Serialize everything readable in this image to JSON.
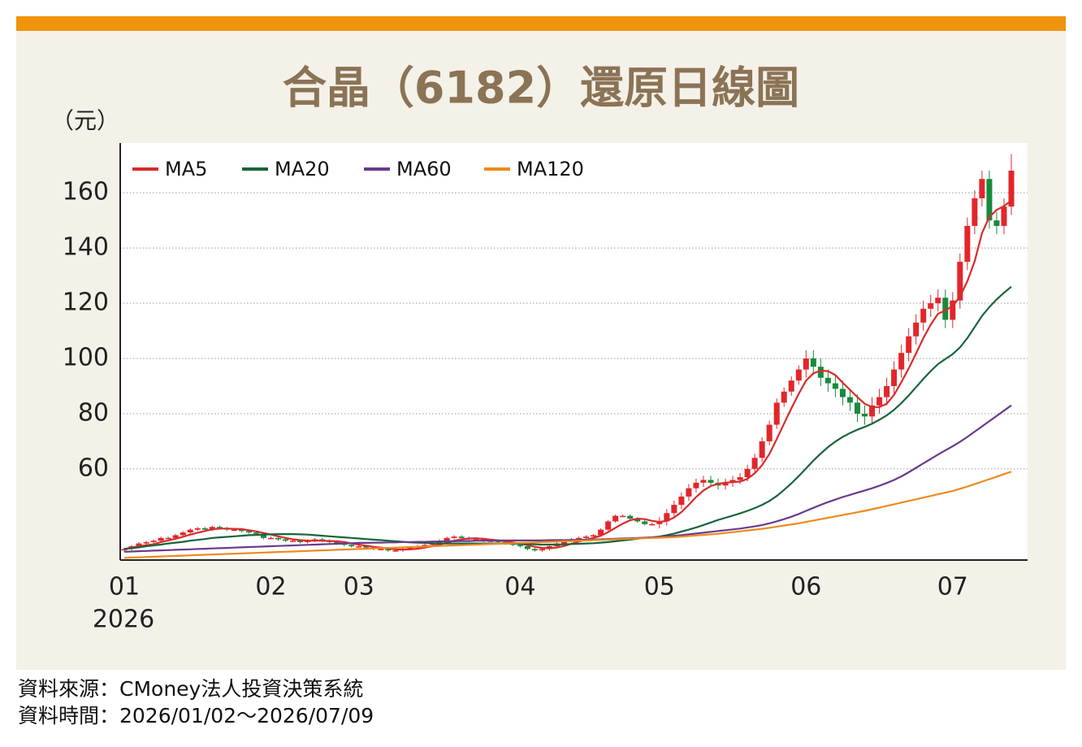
{
  "chart_data": {
    "type": "candlestick",
    "title": "合晶（6182）還原日線圖",
    "y_unit_label": "（元）",
    "year_label": "2026",
    "categories": [
      "01",
      null,
      null,
      null,
      null,
      null,
      null,
      null,
      null,
      null,
      null,
      null,
      null,
      null,
      null,
      null,
      null,
      null,
      null,
      null,
      "02",
      null,
      null,
      null,
      null,
      null,
      null,
      null,
      null,
      null,
      null,
      null,
      "03",
      null,
      null,
      null,
      null,
      null,
      null,
      null,
      null,
      null,
      null,
      null,
      null,
      null,
      null,
      null,
      null,
      null,
      null,
      null,
      null,
      null,
      "04",
      null,
      null,
      null,
      null,
      null,
      null,
      null,
      null,
      null,
      null,
      null,
      null,
      null,
      null,
      null,
      null,
      null,
      null,
      "05",
      null,
      null,
      null,
      null,
      null,
      null,
      null,
      null,
      null,
      null,
      null,
      null,
      null,
      null,
      null,
      null,
      null,
      null,
      null,
      "06",
      null,
      null,
      null,
      null,
      null,
      null,
      null,
      null,
      null,
      null,
      null,
      null,
      null,
      null,
      null,
      null,
      null,
      null,
      null,
      "07",
      null,
      null,
      null,
      null,
      null,
      null,
      null,
      null
    ],
    "open": [
      30.5,
      31,
      32,
      33,
      33.5,
      34,
      35,
      35,
      36,
      37,
      38,
      38.5,
      38,
      39,
      38.5,
      38,
      38,
      37.5,
      37,
      36.5,
      35,
      35,
      34.5,
      34,
      34,
      33.5,
      34,
      34.5,
      34,
      33.5,
      33,
      32.5,
      32,
      32,
      31.5,
      31,
      31,
      30.5,
      30.5,
      31,
      31.5,
      32,
      32.5,
      33,
      34,
      35,
      35.5,
      35,
      34.5,
      34.5,
      34,
      34,
      33.5,
      33,
      32.5,
      32,
      31,
      30.5,
      31,
      32,
      33,
      34,
      34.5,
      35,
      35.5,
      36,
      38,
      41,
      43,
      43,
      42,
      41,
      40,
      40,
      41,
      44,
      47,
      50,
      53,
      55,
      56,
      55,
      54,
      55,
      56,
      57,
      60,
      64,
      70,
      76,
      84,
      88,
      92,
      96,
      100,
      97,
      93,
      91,
      89,
      86,
      84,
      80,
      79,
      83,
      86,
      90,
      96,
      102,
      108,
      113,
      118,
      120,
      122,
      114,
      121,
      135,
      148,
      158,
      165,
      150,
      148,
      155
    ],
    "high": [
      31.5,
      32.5,
      33.5,
      34,
      34.5,
      35.5,
      35.5,
      36.5,
      37.5,
      38.5,
      39,
      39,
      39.5,
      39.5,
      39,
      38.5,
      38.5,
      38,
      37.5,
      37,
      35.5,
      35.5,
      35,
      34.5,
      34.5,
      34.5,
      35,
      35,
      34.5,
      34,
      33.5,
      33,
      32.5,
      32.5,
      32,
      31.5,
      31.5,
      31,
      31.5,
      32,
      32.5,
      33,
      33.5,
      34.5,
      35.5,
      36,
      36,
      35.5,
      35,
      35,
      34.5,
      34.5,
      34,
      33.5,
      33,
      32.5,
      31.5,
      31.5,
      32.5,
      33.5,
      34.5,
      35,
      35.5,
      36,
      36.5,
      38.5,
      41.5,
      43.5,
      43.5,
      43.5,
      42.5,
      41.5,
      40.5,
      42.5,
      45.5,
      48.5,
      51.5,
      54.5,
      56.5,
      57.5,
      57.5,
      56.5,
      56.5,
      57.5,
      58.5,
      61.5,
      65.5,
      71.5,
      77.5,
      85.5,
      89.5,
      93.5,
      97.5,
      103,
      103,
      100,
      96,
      94,
      92,
      89,
      87,
      83,
      86,
      89,
      93,
      99,
      105,
      111,
      116,
      121,
      123,
      125,
      125,
      124,
      138,
      151,
      161,
      168,
      168,
      153,
      158,
      174
    ],
    "low": [
      30,
      30.5,
      31.5,
      32.5,
      33,
      33.5,
      34.5,
      34.5,
      35.5,
      36.5,
      37.5,
      37.5,
      37.5,
      38,
      37.5,
      37.5,
      37,
      36.5,
      36,
      34.5,
      34.5,
      34,
      33.5,
      33.5,
      33,
      33,
      33.5,
      33.5,
      33,
      32.5,
      32,
      31.5,
      31.5,
      31,
      30.5,
      30.5,
      30,
      30,
      30,
      30.5,
      31,
      31.5,
      32,
      32.5,
      33.5,
      34.5,
      34.5,
      34,
      34,
      33.5,
      33.5,
      33,
      32.5,
      32,
      31.5,
      30.5,
      30,
      30,
      30.5,
      31.5,
      32.5,
      33.5,
      34,
      34.5,
      35,
      35.5,
      37.5,
      40.5,
      42.5,
      41.5,
      40.5,
      39.5,
      39.5,
      38.5,
      39.5,
      42.5,
      45.5,
      48.5,
      51.5,
      53.5,
      53.5,
      52.5,
      52.5,
      53.5,
      54.5,
      55.5,
      58.5,
      62.5,
      68.5,
      74.5,
      82.5,
      86.5,
      90.5,
      93,
      94,
      90,
      88,
      86,
      83,
      81,
      77,
      76,
      76,
      80,
      83,
      87,
      93,
      99,
      105,
      110,
      115,
      117,
      111,
      111,
      118,
      132,
      145,
      155,
      147,
      145,
      145,
      152
    ],
    "close": [
      31,
      32,
      33,
      33.5,
      34,
      35,
      35,
      36,
      37,
      38,
      38.5,
      38,
      39,
      38.5,
      38,
      38,
      37.5,
      37,
      36.5,
      35,
      35,
      34.5,
      34,
      34,
      33.5,
      34,
      34.5,
      34,
      33.5,
      33,
      32.5,
      32,
      32,
      31.5,
      31,
      31,
      30.5,
      30.5,
      31,
      31.5,
      32,
      32.5,
      33,
      34,
      35,
      35.5,
      35,
      34.5,
      34.5,
      34,
      34,
      33.5,
      33,
      32.5,
      32,
      31,
      30.5,
      31,
      32,
      33,
      34,
      34.5,
      35,
      35.5,
      36,
      38,
      41,
      43,
      43,
      42,
      41,
      40,
      40,
      41,
      44,
      47,
      50,
      53,
      55,
      56,
      55,
      54,
      55,
      56,
      57,
      60,
      64,
      70,
      76,
      84,
      88,
      92,
      96,
      100,
      97,
      93,
      91,
      89,
      86,
      84,
      80,
      79,
      83,
      86,
      90,
      96,
      102,
      108,
      113,
      118,
      120,
      122,
      114,
      121,
      135,
      148,
      158,
      165,
      150,
      148,
      155,
      168
    ],
    "up_color": "#e2262b",
    "down_color": "#188a3c",
    "series": [
      {
        "name": "MA5",
        "color": "#d92b2b",
        "values": [
          31,
          31.5,
          32,
          32.4,
          32.7,
          33.5,
          34.1,
          34.7,
          35.4,
          36.2,
          36.9,
          37.5,
          38.1,
          38.4,
          38.4,
          38.3,
          38.2,
          37.8,
          37.4,
          36.8,
          36.2,
          35.6,
          35,
          34.5,
          34.2,
          34,
          34,
          34,
          33.9,
          33.8,
          33.5,
          33,
          32.6,
          32.2,
          31.8,
          31.5,
          31.2,
          30.9,
          30.8,
          30.9,
          31.1,
          31.5,
          32,
          32.6,
          33.3,
          34,
          34.5,
          34.8,
          34.9,
          34.7,
          34.4,
          34.1,
          33.8,
          33.4,
          33,
          32.4,
          31.8,
          31.4,
          31.3,
          31.5,
          32.1,
          32.9,
          33.7,
          34.4,
          35,
          35.8,
          37.1,
          38.7,
          40.2,
          41.4,
          42,
          41.8,
          41.2,
          40.8,
          41.2,
          42.4,
          44.4,
          47,
          49.8,
          52.2,
          53.8,
          54.6,
          55,
          55.2,
          55.4,
          56.4,
          58.4,
          61.4,
          65.4,
          70.8,
          76.4,
          82,
          87.2,
          92,
          94.6,
          95.6,
          95.4,
          94,
          91.2,
          88.6,
          86,
          83.6,
          82.4,
          82.4,
          83.6,
          86.8,
          91.4,
          96.4,
          101.8,
          107.4,
          112.2,
          116.2,
          117.4,
          119,
          122.4,
          128,
          135.2,
          145.4,
          151.2,
          153.8,
          155.2,
          157.2
        ]
      },
      {
        "name": "MA20",
        "color": "#17653a",
        "values": [
          31,
          31.3,
          31.6,
          32,
          32.3,
          32.6,
          33,
          33.3,
          33.6,
          34,
          34.3,
          34.6,
          35,
          35.2,
          35.4,
          35.6,
          35.8,
          36,
          36.1,
          36.2,
          36.3,
          36.4,
          36.4,
          36.4,
          36.3,
          36.2,
          36,
          35.8,
          35.6,
          35.4,
          35.2,
          35,
          34.8,
          34.6,
          34.4,
          34.2,
          34,
          33.8,
          33.6,
          33.4,
          33.3,
          33.2,
          33.1,
          33,
          33,
          33,
          33,
          33,
          33,
          33,
          33,
          33,
          33,
          33,
          32.9,
          32.8,
          32.7,
          32.6,
          32.6,
          32.6,
          32.7,
          32.8,
          32.9,
          33,
          33.1,
          33.3,
          33.5,
          33.8,
          34.1,
          34.4,
          34.7,
          35,
          35.2,
          35.5,
          36,
          36.6,
          37.3,
          38,
          38.8,
          39.7,
          40.6,
          41.5,
          42.3,
          43.1,
          43.9,
          44.8,
          45.8,
          47,
          48.4,
          50.2,
          52.4,
          54.8,
          57.4,
          60.2,
          63,
          65.6,
          67.9,
          69.9,
          71.6,
          73,
          74.2,
          75.2,
          76.4,
          77.8,
          79.4,
          81.4,
          83.8,
          86.6,
          89.6,
          92.6,
          95.4,
          98,
          99.8,
          101.6,
          104,
          107.4,
          111.4,
          115.4,
          118.6,
          121.4,
          123.8,
          126
        ]
      },
      {
        "name": "MA60",
        "color": "#6a3a8e",
        "values": [
          30,
          30.1,
          30.2,
          30.3,
          30.4,
          30.5,
          30.6,
          30.7,
          30.8,
          30.9,
          31,
          31.1,
          31.2,
          31.3,
          31.4,
          31.5,
          31.6,
          31.7,
          31.8,
          31.9,
          32,
          32.1,
          32.2,
          32.3,
          32.4,
          32.5,
          32.6,
          32.7,
          32.8,
          32.9,
          33,
          33.1,
          33.2,
          33.2,
          33.3,
          33.3,
          33.4,
          33.4,
          33.5,
          33.5,
          33.6,
          33.6,
          33.7,
          33.7,
          33.8,
          33.8,
          33.9,
          33.9,
          34,
          34,
          34,
          34.1,
          34.1,
          34.1,
          34.1,
          34.1,
          34.1,
          34.1,
          34.2,
          34.2,
          34.2,
          34.3,
          34.3,
          34.4,
          34.4,
          34.5,
          34.6,
          34.7,
          34.8,
          34.9,
          35,
          35.1,
          35.2,
          35.4,
          35.6,
          35.8,
          36,
          36.3,
          36.6,
          36.9,
          37.2,
          37.5,
          37.8,
          38.1,
          38.4,
          38.8,
          39.2,
          39.7,
          40.3,
          41,
          41.8,
          42.7,
          43.7,
          44.8,
          45.9,
          47,
          48,
          48.9,
          49.8,
          50.6,
          51.4,
          52.2,
          53,
          53.9,
          54.9,
          56,
          57.3,
          58.8,
          60.4,
          62,
          63.6,
          65.2,
          66.7,
          68.2,
          69.8,
          71.6,
          73.5,
          75.4,
          77.3,
          79.2,
          81.1,
          83
        ]
      },
      {
        "name": "MA120",
        "color": "#ee8a1c",
        "values": [
          27.8,
          27.9,
          28,
          28.1,
          28.2,
          28.3,
          28.4,
          28.5,
          28.6,
          28.7,
          28.8,
          28.9,
          29,
          29.1,
          29.2,
          29.3,
          29.4,
          29.5,
          29.6,
          29.7,
          29.8,
          29.9,
          30,
          30.1,
          30.2,
          30.3,
          30.4,
          30.5,
          30.6,
          30.7,
          30.8,
          30.9,
          31,
          31.1,
          31.2,
          31.3,
          31.4,
          31.5,
          31.6,
          31.7,
          31.8,
          31.9,
          32,
          32.1,
          32.2,
          32.3,
          32.4,
          32.5,
          32.6,
          32.7,
          32.8,
          32.9,
          33,
          33.1,
          33.2,
          33.3,
          33.4,
          33.5,
          33.6,
          33.7,
          33.8,
          33.9,
          34,
          34.1,
          34.2,
          34.3,
          34.4,
          34.5,
          34.6,
          34.7,
          34.8,
          34.9,
          35,
          35.1,
          35.2,
          35.3,
          35.5,
          35.7,
          35.9,
          36.1,
          36.3,
          36.5,
          36.8,
          37.1,
          37.4,
          37.7,
          38,
          38.3,
          38.7,
          39.1,
          39.5,
          39.9,
          40.3,
          40.8,
          41.3,
          41.8,
          42.3,
          42.8,
          43.3,
          43.8,
          44.3,
          44.8,
          45.4,
          46,
          46.6,
          47.2,
          47.8,
          48.4,
          49,
          49.6,
          50.2,
          50.8,
          51.4,
          52,
          52.8,
          53.6,
          54.5,
          55.4,
          56.3,
          57.2,
          58.1,
          59
        ]
      }
    ],
    "ylim": [
      27,
      178
    ],
    "yticks": [
      60,
      80,
      100,
      120,
      140,
      160
    ],
    "grid": true,
    "legend": "upper-left"
  },
  "footer": {
    "source": "資料來源：CMoney法人投資決策系統",
    "date": "資料時間：2026/01/02～2026/07/09"
  }
}
